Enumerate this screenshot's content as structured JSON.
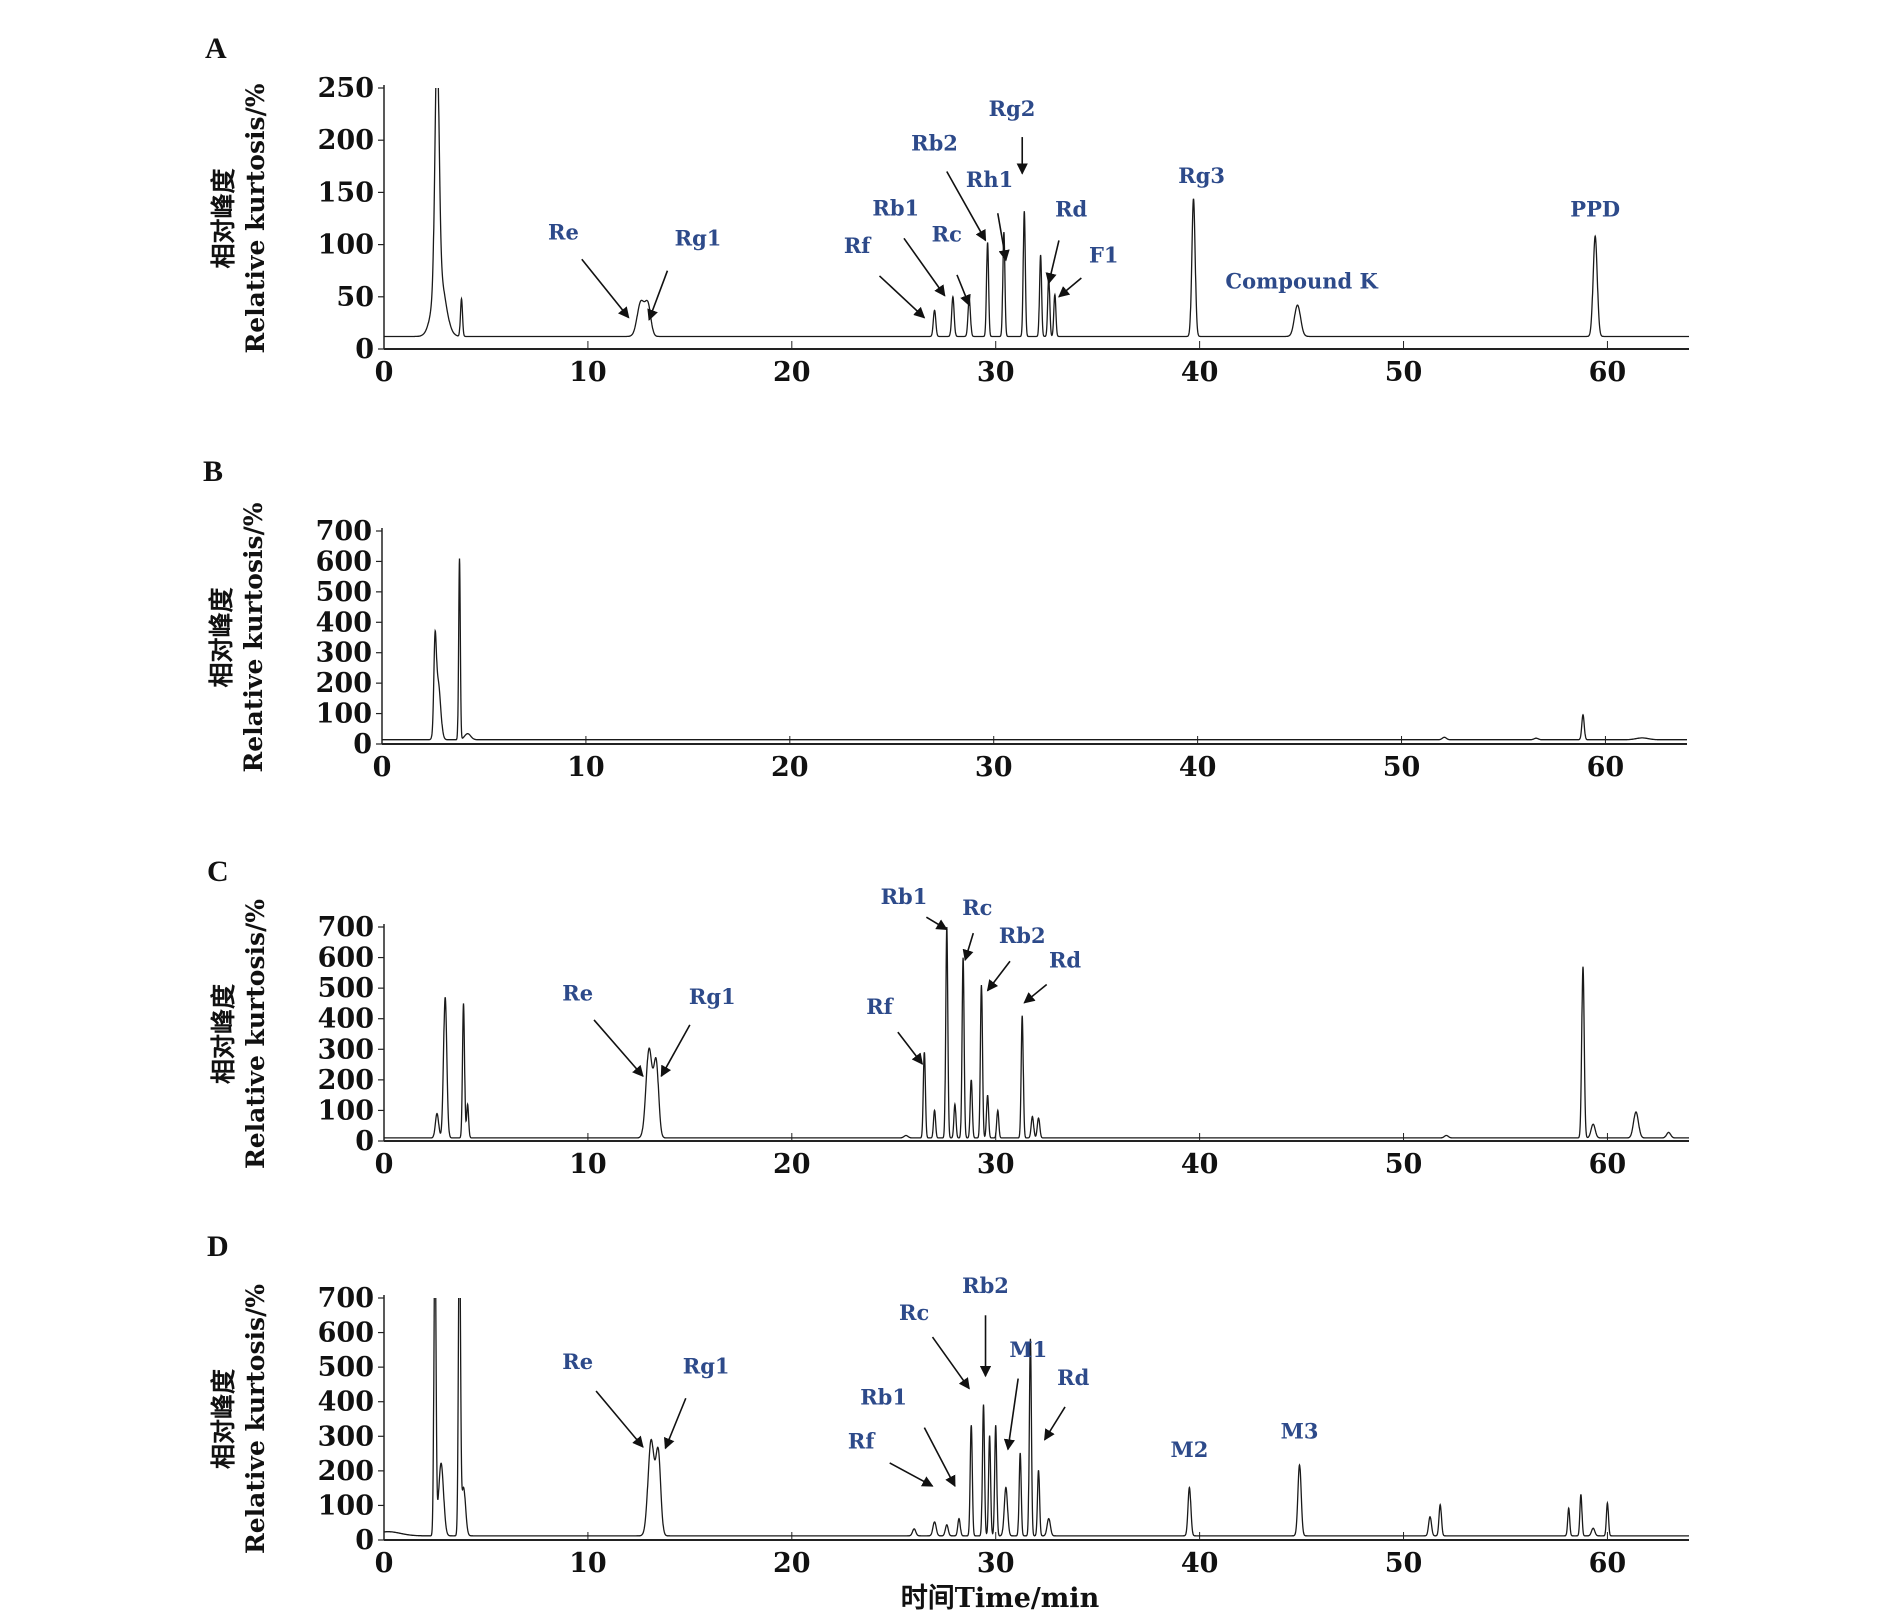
{
  "chart_data": [
    {
      "panel": "A",
      "type": "line",
      "ylabel_cn": "相对峰度",
      "ylabel": "Relative kurtosis/%",
      "xlim": [
        0,
        64
      ],
      "ylim": [
        0,
        250
      ],
      "yticks": [
        0,
        50,
        100,
        150,
        200,
        250
      ],
      "xticks": [
        0,
        10,
        20,
        30,
        40,
        50,
        60
      ],
      "baseline": 12,
      "peaks": [
        [
          2.6,
          225,
          0.1
        ],
        [
          2.7,
          60,
          0.3
        ],
        [
          3.8,
          36,
          0.05
        ],
        [
          12.6,
          33,
          0.18
        ],
        [
          12.95,
          28,
          0.14
        ],
        [
          27.0,
          25,
          0.06
        ],
        [
          27.9,
          38,
          0.06
        ],
        [
          28.7,
          36,
          0.06
        ],
        [
          29.6,
          90,
          0.05
        ],
        [
          30.4,
          100,
          0.05
        ],
        [
          31.4,
          120,
          0.05
        ],
        [
          32.2,
          78,
          0.05
        ],
        [
          32.6,
          56,
          0.05
        ],
        [
          32.9,
          40,
          0.05
        ],
        [
          39.7,
          132,
          0.08
        ],
        [
          44.8,
          30,
          0.15
        ],
        [
          59.4,
          96,
          0.1
        ]
      ],
      "annotations": [
        {
          "text": "Re",
          "label": [
            8.8,
            105
          ],
          "from": [
            9.7,
            86
          ],
          "to": [
            12.0,
            30
          ]
        },
        {
          "text": "Rg1",
          "label": [
            15.4,
            99
          ],
          "from": [
            13.9,
            75
          ],
          "to": [
            13.0,
            28
          ]
        },
        {
          "text": "Rf",
          "label": [
            23.2,
            92
          ],
          "from": [
            24.3,
            70
          ],
          "to": [
            26.5,
            30
          ]
        },
        {
          "text": "Rb1",
          "label": [
            25.1,
            128
          ],
          "from": [
            25.5,
            106
          ],
          "to": [
            27.5,
            51
          ]
        },
        {
          "text": "Rc",
          "label": [
            27.6,
            103
          ],
          "from": [
            28.1,
            71
          ],
          "to": [
            28.7,
            42
          ]
        },
        {
          "text": "Rb2",
          "label": [
            27.0,
            190
          ],
          "from": [
            27.6,
            170
          ],
          "to": [
            29.5,
            104
          ]
        },
        {
          "text": "Rh1",
          "label": [
            29.7,
            155
          ],
          "from": [
            30.1,
            130
          ],
          "to": [
            30.5,
            85
          ]
        },
        {
          "text": "Rg2",
          "label": [
            30.8,
            223
          ],
          "from": [
            31.3,
            203
          ],
          "to": [
            31.3,
            168
          ]
        },
        {
          "text": "Rd",
          "label": [
            33.7,
            127
          ],
          "from": [
            33.1,
            104
          ],
          "to": [
            32.6,
            63
          ]
        },
        {
          "text": "F1",
          "label": [
            35.3,
            83
          ],
          "from": [
            34.2,
            68
          ],
          "to": [
            33.1,
            50
          ]
        },
        {
          "text": "Rg3",
          "label": [
            40.1,
            159
          ]
        },
        {
          "text": "Compound K",
          "label": [
            45.0,
            58
          ]
        },
        {
          "text": "PPD",
          "label": [
            59.4,
            127
          ]
        }
      ]
    },
    {
      "panel": "B",
      "type": "line",
      "ylabel_cn": "相对峰度",
      "ylabel": "Relative kurtosis/%",
      "xlim": [
        0,
        64
      ],
      "ylim": [
        0,
        700
      ],
      "yticks": [
        0,
        100,
        200,
        300,
        400,
        500,
        600,
        700
      ],
      "xticks": [
        0,
        10,
        20,
        30,
        40,
        50,
        60
      ],
      "baseline": 14,
      "peaks": [
        [
          2.6,
          265,
          0.06
        ],
        [
          2.75,
          190,
          0.12
        ],
        [
          3.8,
          595,
          0.04
        ],
        [
          4.2,
          20,
          0.15
        ],
        [
          52.1,
          8,
          0.1
        ],
        [
          56.6,
          5,
          0.1
        ],
        [
          58.9,
          82,
          0.06
        ],
        [
          61.8,
          6,
          0.3
        ]
      ],
      "annotations": []
    },
    {
      "panel": "C",
      "type": "line",
      "ylabel_cn": "相对峰度",
      "ylabel": "Relative kurtosis/%",
      "xlim": [
        0,
        64
      ],
      "ylim": [
        0,
        700
      ],
      "yticks": [
        0,
        100,
        200,
        300,
        400,
        500,
        600,
        700
      ],
      "xticks": [
        0,
        10,
        20,
        30,
        40,
        50,
        60
      ],
      "baseline": 10,
      "peaks": [
        [
          2.6,
          80,
          0.08
        ],
        [
          3.0,
          460,
          0.08
        ],
        [
          3.9,
          440,
          0.05
        ],
        [
          4.1,
          110,
          0.05
        ],
        [
          13.0,
          290,
          0.15
        ],
        [
          13.35,
          240,
          0.12
        ],
        [
          25.6,
          8,
          0.1
        ],
        [
          26.5,
          280,
          0.05
        ],
        [
          27.0,
          90,
          0.05
        ],
        [
          27.6,
          690,
          0.05
        ],
        [
          28.0,
          110,
          0.05
        ],
        [
          28.4,
          590,
          0.05
        ],
        [
          28.8,
          190,
          0.05
        ],
        [
          29.3,
          500,
          0.05
        ],
        [
          29.6,
          140,
          0.05
        ],
        [
          30.1,
          90,
          0.05
        ],
        [
          31.3,
          400,
          0.05
        ],
        [
          31.8,
          70,
          0.06
        ],
        [
          32.1,
          65,
          0.06
        ],
        [
          52.1,
          8,
          0.1
        ],
        [
          58.8,
          560,
          0.06
        ],
        [
          59.3,
          45,
          0.1
        ],
        [
          61.4,
          85,
          0.12
        ],
        [
          63.0,
          18,
          0.1
        ]
      ],
      "annotations": [
        {
          "text": "Re",
          "label": [
            9.5,
            460
          ],
          "from": [
            10.3,
            396
          ],
          "to": [
            12.7,
            212
          ]
        },
        {
          "text": "Rg1",
          "label": [
            16.1,
            448
          ],
          "from": [
            15.0,
            380
          ],
          "to": [
            13.6,
            212
          ]
        },
        {
          "text": "Rf",
          "label": [
            24.3,
            416
          ],
          "from": [
            25.2,
            356
          ],
          "to": [
            26.4,
            252
          ]
        },
        {
          "text": "Rb1",
          "label": [
            25.5,
            776
          ],
          "from": [
            26.6,
            732
          ],
          "to": [
            27.6,
            692
          ]
        },
        {
          "text": "Rc",
          "label": [
            29.1,
            740
          ],
          "from": [
            28.9,
            680
          ],
          "to": [
            28.5,
            592
          ]
        },
        {
          "text": "Rb2",
          "label": [
            31.3,
            648
          ],
          "from": [
            30.7,
            588
          ],
          "to": [
            29.6,
            492
          ]
        },
        {
          "text": "Rd",
          "label": [
            33.4,
            568
          ],
          "from": [
            32.5,
            512
          ],
          "to": [
            31.4,
            452
          ]
        }
      ]
    },
    {
      "panel": "D",
      "type": "line",
      "ylabel_cn": "相对峰度",
      "ylabel": "Relative kurtosis/%",
      "xlabel": "时间Time/min",
      "xlim": [
        0,
        64
      ],
      "ylim": [
        0,
        700
      ],
      "yticks": [
        0,
        100,
        200,
        300,
        400,
        500,
        600,
        700
      ],
      "xticks": [
        0,
        10,
        20,
        30,
        40,
        50,
        60
      ],
      "baseline": 12,
      "peaks": [
        [
          0.2,
          12,
          0.6
        ],
        [
          2.5,
          900,
          0.05
        ],
        [
          2.8,
          210,
          0.12
        ],
        [
          3.7,
          900,
          0.05
        ],
        [
          3.9,
          140,
          0.1
        ],
        [
          13.1,
          275,
          0.15
        ],
        [
          13.45,
          235,
          0.12
        ],
        [
          26.0,
          20,
          0.08
        ],
        [
          27.0,
          40,
          0.08
        ],
        [
          27.6,
          32,
          0.07
        ],
        [
          28.2,
          50,
          0.06
        ],
        [
          28.8,
          320,
          0.05
        ],
        [
          29.4,
          380,
          0.05
        ],
        [
          29.7,
          290,
          0.05
        ],
        [
          30.0,
          320,
          0.05
        ],
        [
          30.5,
          140,
          0.08
        ],
        [
          31.2,
          240,
          0.05
        ],
        [
          31.7,
          570,
          0.05
        ],
        [
          32.1,
          190,
          0.05
        ],
        [
          32.6,
          50,
          0.08
        ],
        [
          39.5,
          140,
          0.07
        ],
        [
          44.9,
          205,
          0.08
        ],
        [
          51.3,
          55,
          0.07
        ],
        [
          51.8,
          90,
          0.06
        ],
        [
          58.1,
          80,
          0.05
        ],
        [
          58.7,
          120,
          0.05
        ],
        [
          59.3,
          22,
          0.08
        ],
        [
          60.0,
          95,
          0.05
        ]
      ],
      "annotations": [
        {
          "text": "Re",
          "label": [
            9.5,
            495
          ],
          "from": [
            10.4,
            431
          ],
          "to": [
            12.7,
            269
          ]
        },
        {
          "text": "Rg1",
          "label": [
            15.8,
            481
          ],
          "from": [
            14.8,
            410
          ],
          "to": [
            13.8,
            265
          ]
        },
        {
          "text": "Rf",
          "label": [
            23.4,
            265
          ],
          "from": [
            24.8,
            223
          ],
          "to": [
            26.9,
            156
          ]
        },
        {
          "text": "Rb1",
          "label": [
            24.5,
            392
          ],
          "from": [
            26.5,
            325
          ],
          "to": [
            28.0,
            156
          ]
        },
        {
          "text": "Rc",
          "label": [
            26.0,
            636
          ],
          "from": [
            26.9,
            587
          ],
          "to": [
            28.7,
            438
          ]
        },
        {
          "text": "Rb2",
          "label": [
            29.5,
            714
          ],
          "from": [
            29.5,
            650
          ],
          "to": [
            29.5,
            474
          ]
        },
        {
          "text": "M1",
          "label": [
            31.6,
            530
          ],
          "from": [
            31.1,
            467
          ],
          "to": [
            30.6,
            262
          ]
        },
        {
          "text": "Rd",
          "label": [
            33.8,
            449
          ],
          "from": [
            33.4,
            385
          ],
          "to": [
            32.4,
            290
          ]
        },
        {
          "text": "M2",
          "label": [
            39.5,
            240
          ]
        },
        {
          "text": "M3",
          "label": [
            44.9,
            293
          ]
        }
      ]
    }
  ],
  "colors": {
    "trace": "#1a1a1a",
    "annotation": "#2d4a8a"
  }
}
